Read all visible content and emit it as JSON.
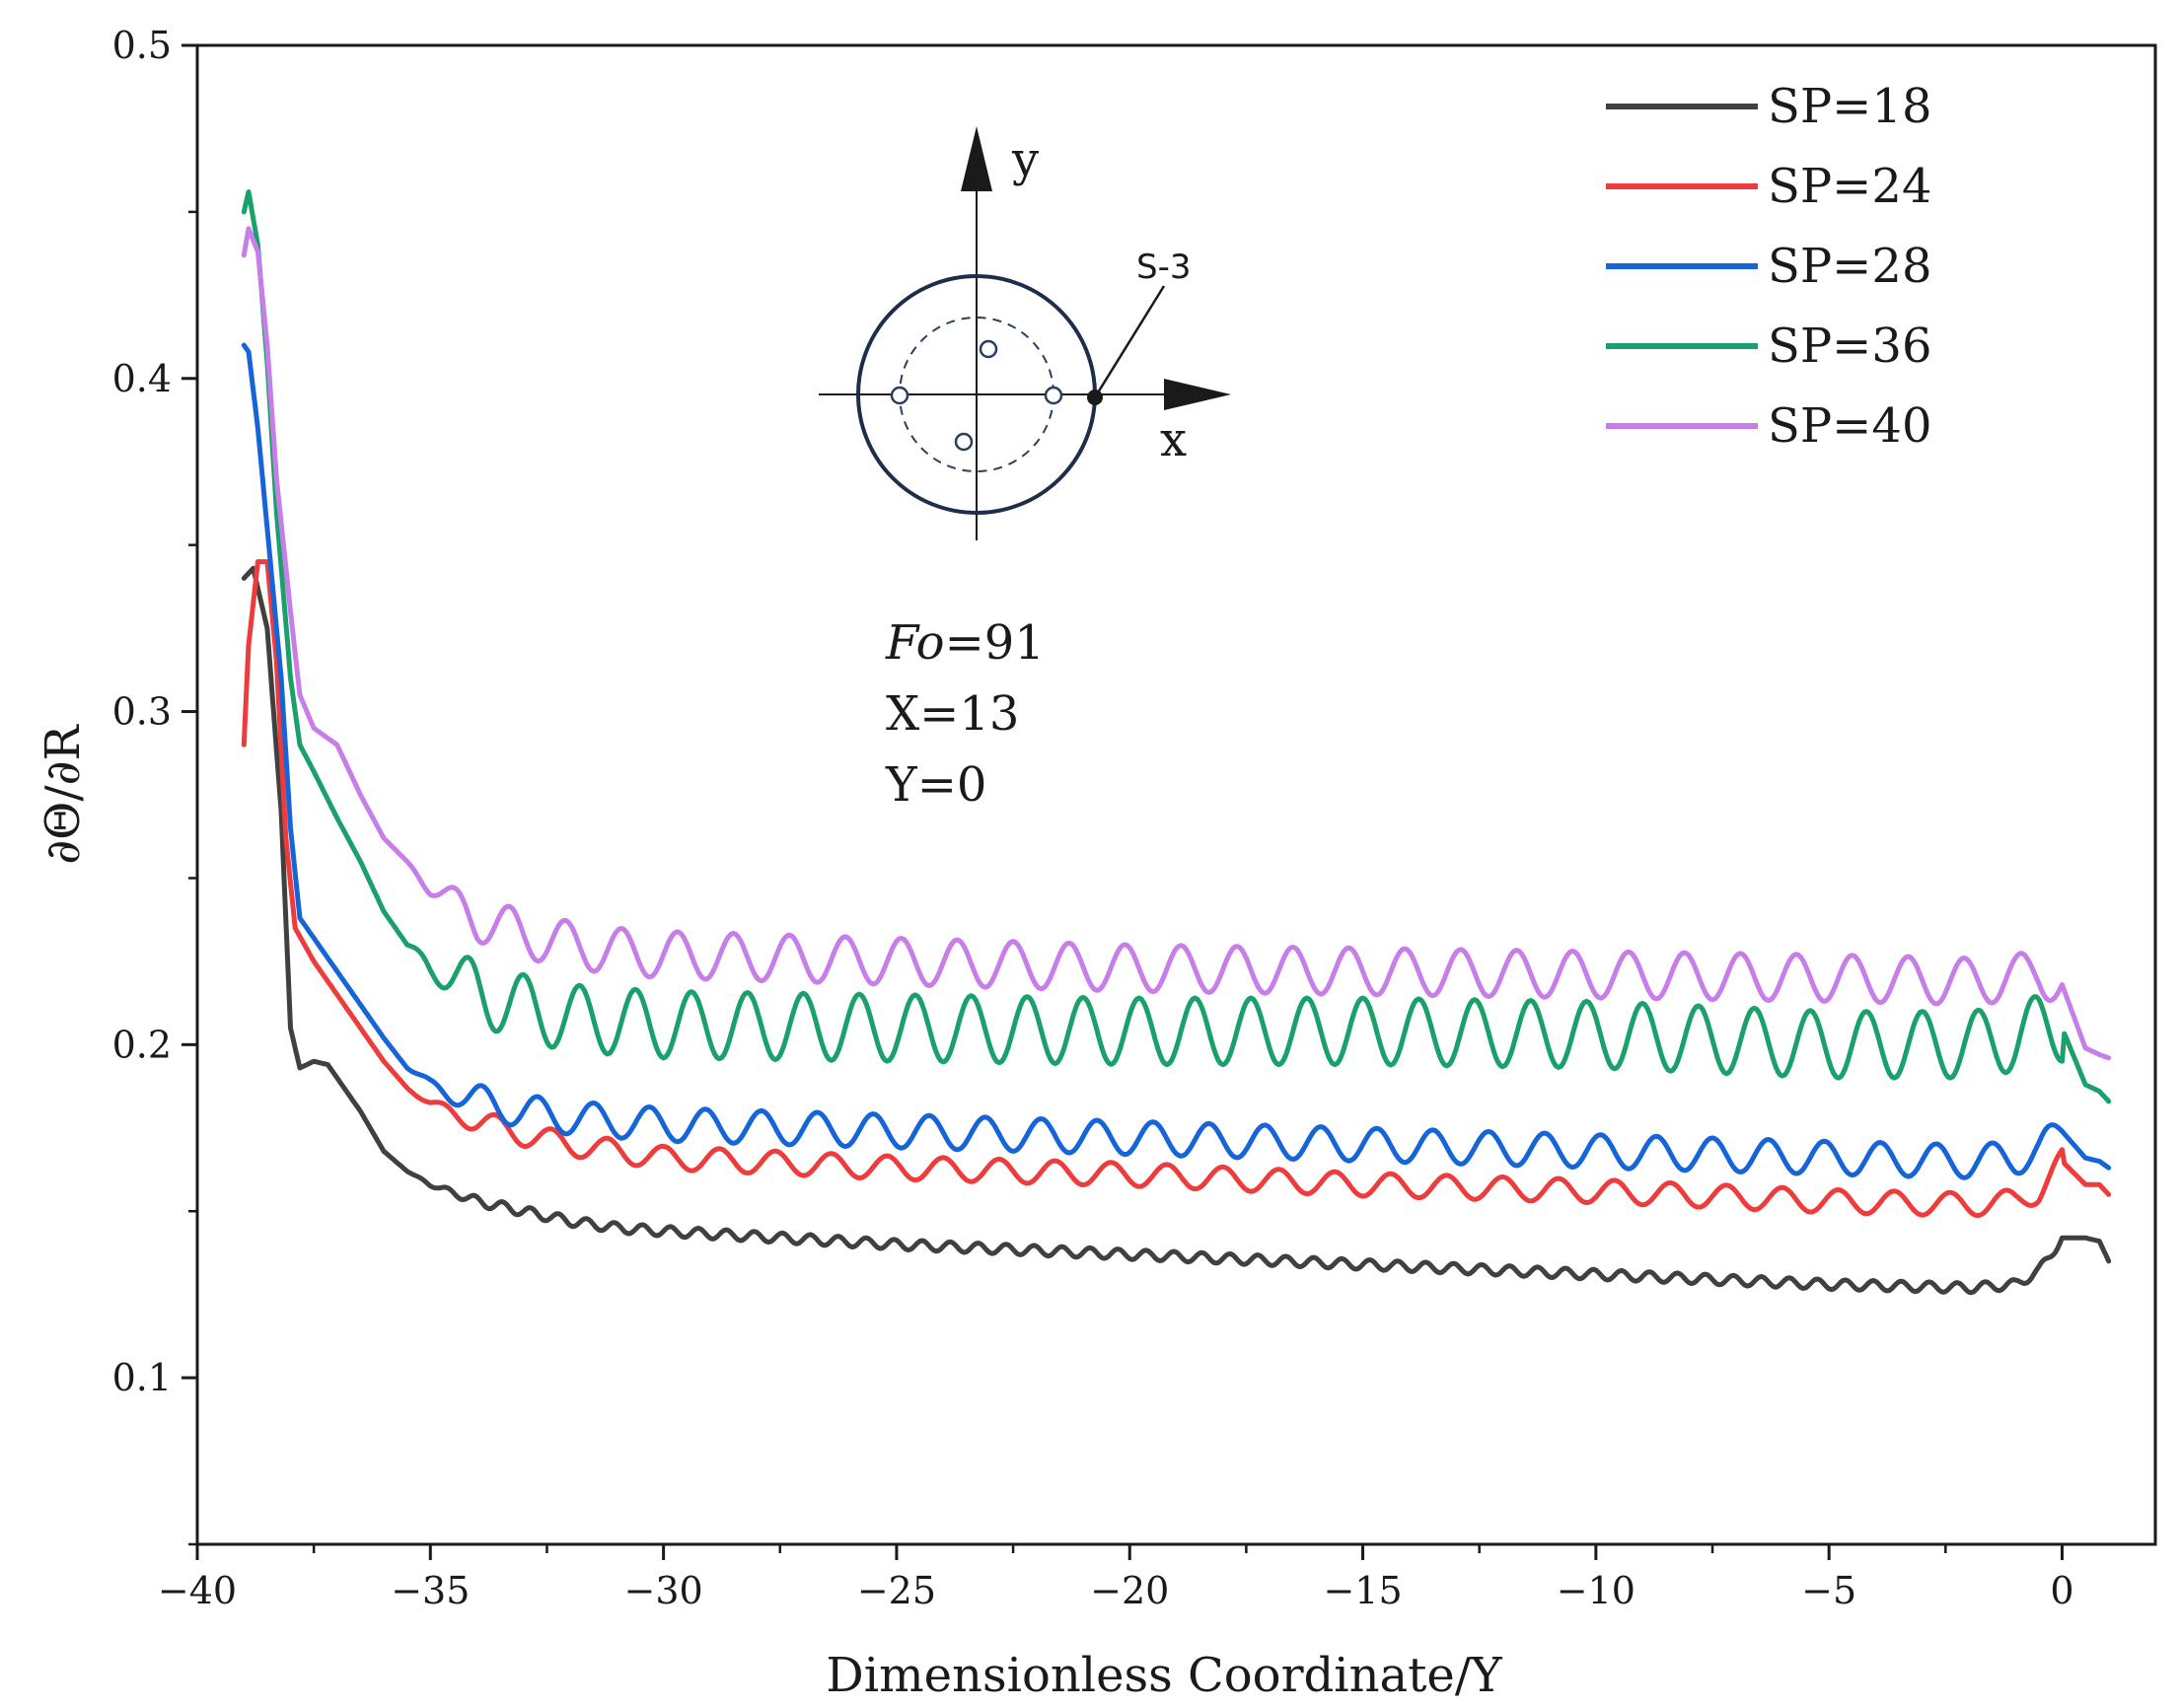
{
  "chart_data": {
    "type": "line",
    "xlabel": "Dimensionless Coordinate/Y",
    "ylabel": "∂Θ/∂R",
    "xlim": [
      -40,
      2
    ],
    "ylim": [
      0.05,
      0.5
    ],
    "xticks": [
      -40,
      -35,
      -30,
      -25,
      -20,
      -15,
      -10,
      -5,
      0
    ],
    "xtick_labels": [
      "−40",
      "−35",
      "−30",
      "−25",
      "−20",
      "−15",
      "−10",
      "−5",
      "0"
    ],
    "yticks": [
      0.1,
      0.2,
      0.3,
      0.4,
      0.5
    ],
    "ytick_labels": [
      "0.1",
      "0.2",
      "0.3",
      "0.4",
      "0.5"
    ],
    "grid": false,
    "legend_position": "top-right",
    "series": [
      {
        "name": "SP=18",
        "color": "#404040",
        "x": [
          -39,
          -38.8,
          -38.5,
          -38.2,
          -38,
          -37.8,
          -37.5,
          -37.2,
          -37,
          -36.5,
          -36,
          -35.5,
          -35,
          -34,
          -33,
          -32,
          -31,
          -30,
          -25,
          -20,
          -15,
          -10,
          -5,
          -2,
          -1,
          -0.5,
          0,
          0.5,
          0.8,
          1
        ],
        "values": [
          0.34,
          0.343,
          0.325,
          0.27,
          0.205,
          0.193,
          0.195,
          0.194,
          0.19,
          0.18,
          0.168,
          0.162,
          0.158,
          0.153,
          0.15,
          0.147,
          0.145,
          0.144,
          0.14,
          0.137,
          0.134,
          0.131,
          0.128,
          0.127,
          0.128,
          0.132,
          0.142,
          0.142,
          0.141,
          0.135
        ],
        "osc_amp": 0.0015,
        "osc_period": 0.6
      },
      {
        "name": "SP=24",
        "color": "#ee3b3b",
        "x": [
          -39,
          -38.9,
          -38.7,
          -38.5,
          -38.3,
          -38.1,
          -37.9,
          -37.5,
          -37,
          -36.5,
          -36,
          -35.5,
          -35,
          -34,
          -33,
          -32,
          -31,
          -30,
          -25,
          -20,
          -15,
          -10,
          -5,
          -2,
          -1,
          -0.5,
          0,
          0.5,
          0.8,
          1
        ],
        "values": [
          0.29,
          0.32,
          0.345,
          0.345,
          0.315,
          0.262,
          0.235,
          0.225,
          0.215,
          0.205,
          0.195,
          0.187,
          0.182,
          0.177,
          0.173,
          0.17,
          0.168,
          0.166,
          0.163,
          0.161,
          0.158,
          0.156,
          0.153,
          0.152,
          0.153,
          0.156,
          0.165,
          0.158,
          0.158,
          0.155
        ],
        "osc_amp": 0.0035,
        "osc_period": 1.2
      },
      {
        "name": "SP=28",
        "color": "#1565d8",
        "x": [
          -39,
          -38.9,
          -38.7,
          -38.5,
          -38.2,
          -38,
          -37.8,
          -37.5,
          -37,
          -36.5,
          -36,
          -35.5,
          -35,
          -34,
          -33,
          -32,
          -31,
          -30,
          -25,
          -20,
          -15,
          -10,
          -5,
          -2,
          -1,
          -0.5,
          0,
          0.5,
          0.8,
          1
        ],
        "values": [
          0.41,
          0.408,
          0.385,
          0.355,
          0.31,
          0.265,
          0.238,
          0.232,
          0.222,
          0.212,
          0.202,
          0.193,
          0.188,
          0.183,
          0.18,
          0.178,
          0.177,
          0.176,
          0.174,
          0.172,
          0.17,
          0.168,
          0.166,
          0.165,
          0.166,
          0.168,
          0.174,
          0.166,
          0.165,
          0.163
        ],
        "osc_amp": 0.005,
        "osc_period": 1.2
      },
      {
        "name": "SP=36",
        "color": "#1aa06b",
        "x": [
          -39,
          -38.9,
          -38.7,
          -38.5,
          -38.3,
          -38,
          -37.8,
          -37.5,
          -37,
          -36.5,
          -36,
          -35.5,
          -35,
          -34,
          -33,
          -32,
          -31,
          -30,
          -25,
          -20,
          -15,
          -10,
          -5,
          -2,
          -1,
          -0.5,
          0,
          0.5,
          0.8,
          1
        ],
        "values": [
          0.45,
          0.456,
          0.44,
          0.405,
          0.36,
          0.31,
          0.29,
          0.282,
          0.268,
          0.255,
          0.24,
          0.23,
          0.224,
          0.216,
          0.211,
          0.208,
          0.207,
          0.206,
          0.205,
          0.204,
          0.204,
          0.203,
          0.2,
          0.2,
          0.202,
          0.205,
          0.205,
          0.188,
          0.186,
          0.183
        ],
        "osc_amp": 0.01,
        "osc_period": 1.2
      },
      {
        "name": "SP=40",
        "color": "#c77ee8",
        "x": [
          -39,
          -38.9,
          -38.7,
          -38.5,
          -38.3,
          -38,
          -37.8,
          -37.5,
          -37,
          -36.5,
          -36,
          -35.5,
          -35,
          -34,
          -33,
          -32,
          -31,
          -30,
          -25,
          -20,
          -15,
          -10,
          -5,
          -2,
          -1,
          -0.5,
          0,
          0.5,
          0.8,
          1
        ],
        "values": [
          0.437,
          0.445,
          0.438,
          0.41,
          0.37,
          0.33,
          0.305,
          0.295,
          0.29,
          0.275,
          0.262,
          0.255,
          0.247,
          0.238,
          0.233,
          0.23,
          0.228,
          0.227,
          0.225,
          0.223,
          0.222,
          0.221,
          0.22,
          0.219,
          0.22,
          0.222,
          0.218,
          0.199,
          0.197,
          0.196
        ],
        "osc_amp": 0.007,
        "osc_period": 1.2
      }
    ],
    "annotations": {
      "fo_label": "Fo",
      "fo_value": "=91",
      "x_line": "X=13",
      "y_line": "Y=0"
    },
    "inset": {
      "axis_x_label": "x",
      "axis_y_label": "y",
      "sensor_label": "S-3",
      "outer_color": "#1c2e4a"
    }
  }
}
